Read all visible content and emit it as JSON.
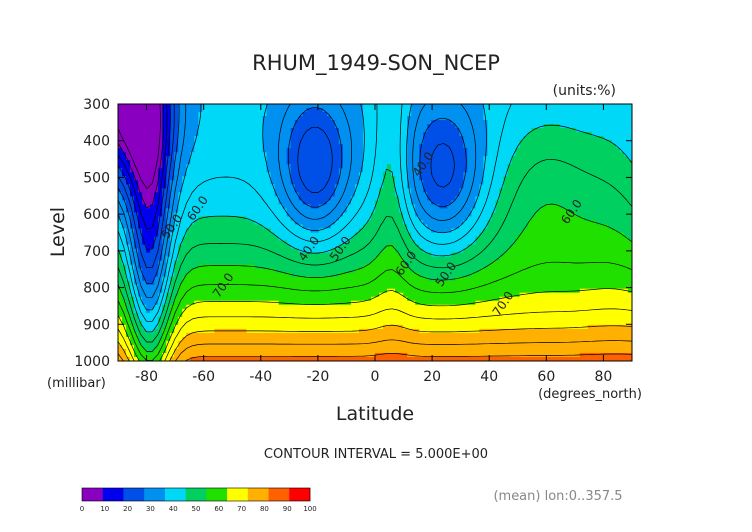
{
  "chart_data": {
    "type": "heatmap",
    "title": "RHUM_1949-SON_NCEP",
    "units_label": "(units:%)",
    "xlabel": "Latitude",
    "ylabel": "Level",
    "x_unit_label": "(degrees_north)",
    "y_unit_label": "(millibar)",
    "xlim": [
      -90,
      90
    ],
    "ylim": [
      1000,
      300
    ],
    "x_ticks": [
      -80,
      -60,
      -40,
      -20,
      0,
      20,
      40,
      60,
      80
    ],
    "x_tick_labels": [
      "-80",
      "-60",
      "-40",
      "-20",
      "0",
      "20",
      "40",
      "60",
      "80"
    ],
    "y_ticks": [
      300,
      400,
      500,
      600,
      700,
      800,
      900,
      1000
    ],
    "y_tick_labels": [
      "300",
      "400",
      "500",
      "600",
      "700",
      "800",
      "900",
      "1000"
    ],
    "contour_labels": [
      {
        "text": "40.0",
        "x": -22,
        "y": 700
      },
      {
        "text": "40.0",
        "x": 18,
        "y": 470
      },
      {
        "text": "50.0",
        "x": -70,
        "y": 640
      },
      {
        "text": "50.0",
        "x": -11,
        "y": 700
      },
      {
        "text": "50.0",
        "x": 26,
        "y": 770
      },
      {
        "text": "60.0",
        "x": -61,
        "y": 590
      },
      {
        "text": "60.0",
        "x": 12,
        "y": 740
      },
      {
        "text": "60.0",
        "x": 70,
        "y": 600
      },
      {
        "text": "70.0",
        "x": -52,
        "y": 800
      },
      {
        "text": "70.0",
        "x": 46,
        "y": 850
      }
    ],
    "contour_interval_text": "CONTOUR INTERVAL = 5.000E+00",
    "mean_text": "(mean) lon:0..357.5",
    "colorbar": {
      "levels": [
        0,
        10,
        20,
        30,
        40,
        50,
        60,
        70,
        80,
        90,
        100
      ],
      "level_labels": [
        "0",
        "10",
        "20",
        "30",
        "40",
        "50",
        "60",
        "70",
        "80",
        "90",
        "100"
      ],
      "colors": [
        "#8a00c0",
        "#0000ee",
        "#0050e8",
        "#0090f0",
        "#00d8f8",
        "#00d060",
        "#20e000",
        "#ffff00",
        "#ffb000",
        "#ff6000",
        "#ff0000"
      ]
    },
    "grid": false
  }
}
